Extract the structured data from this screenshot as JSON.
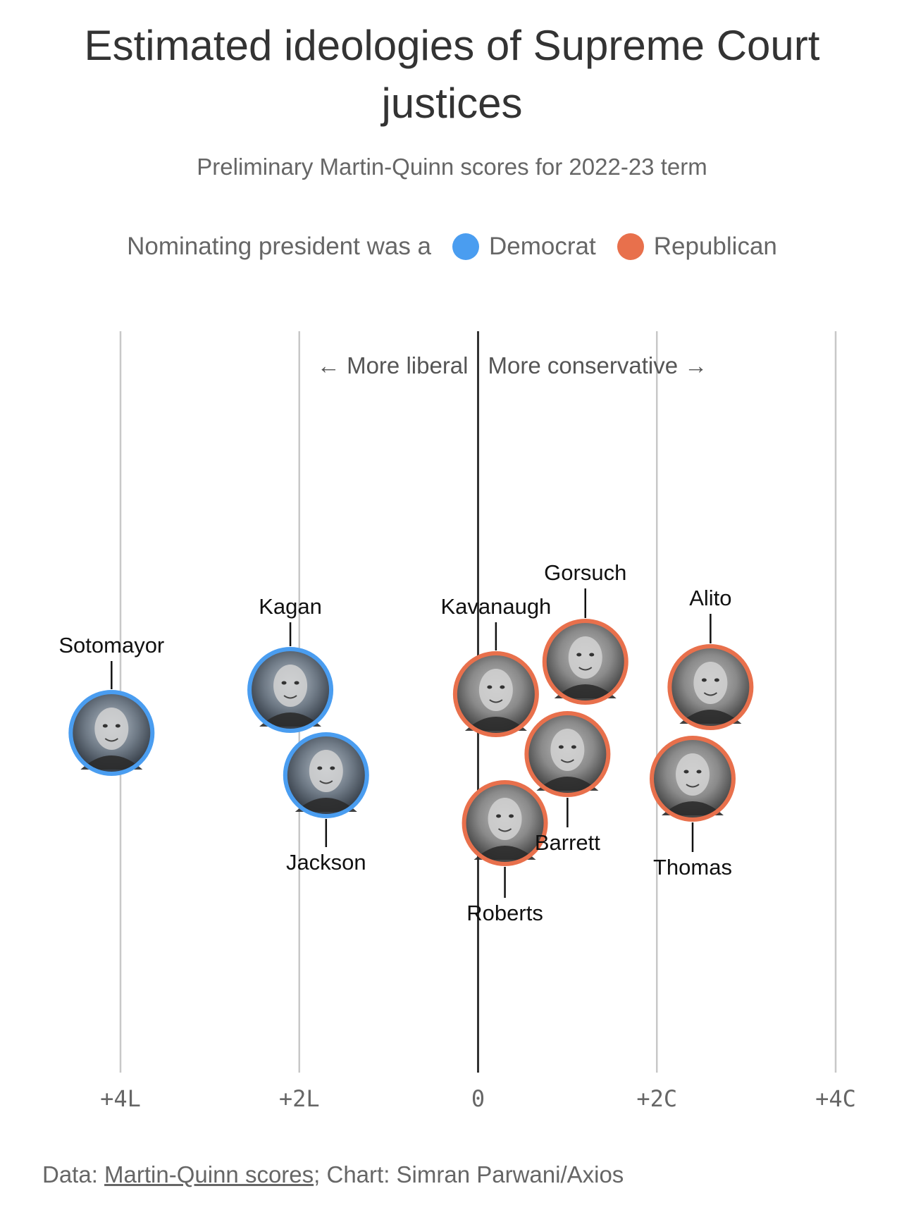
{
  "header": {
    "title": "Estimated ideologies of Supreme Court justices",
    "subtitle": "Preliminary Martin-Quinn scores for 2022-23 term"
  },
  "legend": {
    "prefix": "Nominating president was a",
    "items": [
      {
        "label": "Democrat",
        "color": "#4a9df0"
      },
      {
        "label": "Republican",
        "color": "#e8704c"
      }
    ]
  },
  "footer": {
    "data_prefix": "Data: ",
    "data_link": "Martin-Quinn scores",
    "chart_credit": "; Chart: Simran Parwani/Axios"
  },
  "chart_data": {
    "type": "scatter",
    "title": "Estimated ideologies of Supreme Court justices",
    "subtitle": "Preliminary Martin-Quinn scores for 2022-23 term",
    "x_axis": {
      "range": [
        -4,
        4
      ],
      "ticks": [
        {
          "value": -4,
          "label": "+4L"
        },
        {
          "value": -2,
          "label": "+2L"
        },
        {
          "value": 0,
          "label": "0"
        },
        {
          "value": 2,
          "label": "+2C"
        },
        {
          "value": 4,
          "label": "+4C"
        }
      ]
    },
    "direction_labels": {
      "left": "← More liberal",
      "right": "More conservative →"
    },
    "grid": true,
    "legend_placement": "top",
    "colors": {
      "Democrat": "#4a9df0",
      "Republican": "#e8704c"
    },
    "justices": [
      {
        "name": "Sotomayor",
        "score": -4.1,
        "party": "Democrat"
      },
      {
        "name": "Kagan",
        "score": -2.1,
        "party": "Democrat"
      },
      {
        "name": "Jackson",
        "score": -1.7,
        "party": "Democrat"
      },
      {
        "name": "Kavanaugh",
        "score": 0.2,
        "party": "Republican"
      },
      {
        "name": "Roberts",
        "score": 0.3,
        "party": "Republican"
      },
      {
        "name": "Barrett",
        "score": 1.0,
        "party": "Republican"
      },
      {
        "name": "Gorsuch",
        "score": 1.2,
        "party": "Republican"
      },
      {
        "name": "Thomas",
        "score": 2.4,
        "party": "Republican"
      },
      {
        "name": "Alito",
        "score": 2.6,
        "party": "Republican"
      }
    ]
  }
}
